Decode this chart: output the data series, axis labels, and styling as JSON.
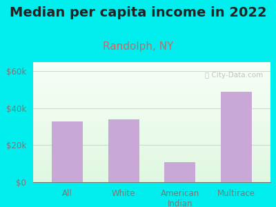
{
  "title": "Median per capita income in 2022",
  "subtitle": "Randolph, NY",
  "categories": [
    "All",
    "White",
    "American\nIndian",
    "Multirace"
  ],
  "values": [
    33000,
    34000,
    11000,
    49000
  ],
  "bar_color": "#c9a8d8",
  "title_fontsize": 14,
  "subtitle_fontsize": 11,
  "subtitle_color": "#cc6666",
  "title_color": "#222222",
  "background_color": "#00eeee",
  "plot_bg_topleft": "#d8eedd",
  "plot_bg_topright": "#f5fffa",
  "plot_bg_bottom": "#e8f8e8",
  "ylabel_ticks": [
    "$0",
    "$20k",
    "$40k",
    "$60k"
  ],
  "ytick_vals": [
    0,
    20000,
    40000,
    60000
  ],
  "ylim": [
    0,
    65000
  ],
  "watermark": "ⓘ City-Data.com",
  "tick_color": "#777777",
  "grid_color": "#ccddcc"
}
